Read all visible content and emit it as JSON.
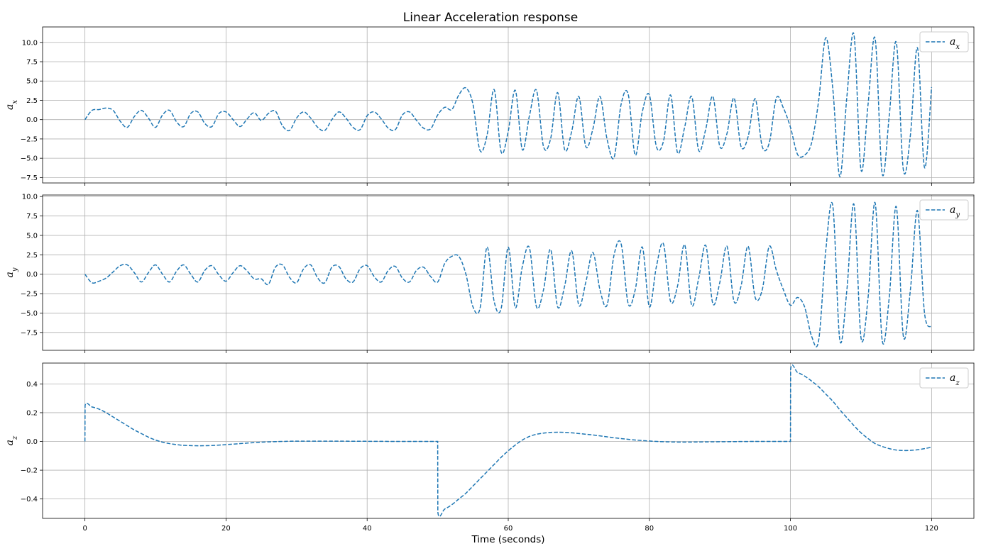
{
  "figure": {
    "title": "Linear Acceleration response",
    "xlabel": "Time (seconds)"
  },
  "chart_data": [
    {
      "type": "line",
      "ylabel": {
        "base": "a",
        "sub": "x"
      },
      "legend": {
        "base": "a",
        "sub": "x",
        "position": "top-right"
      },
      "xlim": [
        -6,
        126
      ],
      "ylim": [
        -8.2,
        12.0
      ],
      "xticks": [
        0,
        20,
        40,
        60,
        80,
        100,
        120
      ],
      "yticks": [
        -7.5,
        -5.0,
        -2.5,
        0.0,
        2.5,
        5.0,
        7.5,
        10.0
      ],
      "ytick_labels": [
        "−7.5",
        "−5.0",
        "−2.5",
        "0.0",
        "2.5",
        "5.0",
        "7.5",
        "10.0"
      ],
      "grid": true,
      "series": [
        {
          "name": "a_x",
          "style": "dashed",
          "x": [
            0,
            1,
            2,
            3,
            4,
            5,
            6,
            7,
            8,
            9,
            10,
            11,
            12,
            13,
            14,
            15,
            16,
            17,
            18,
            19,
            20,
            21,
            22,
            23,
            24,
            25,
            26,
            27,
            28,
            29,
            30,
            31,
            32,
            33,
            34,
            35,
            36,
            37,
            38,
            39,
            40,
            41,
            42,
            43,
            44,
            45,
            46,
            47,
            48,
            49,
            50,
            51,
            52,
            53,
            54,
            55,
            56,
            57,
            58,
            59,
            60,
            61,
            62,
            63,
            64,
            65,
            66,
            67,
            68,
            69,
            70,
            71,
            72,
            73,
            74,
            75,
            76,
            77,
            78,
            79,
            80,
            81,
            82,
            83,
            84,
            85,
            86,
            87,
            88,
            89,
            90,
            91,
            92,
            93,
            94,
            95,
            96,
            97,
            98,
            99,
            100,
            101,
            102,
            103,
            104,
            105,
            106,
            107,
            108,
            109,
            110,
            111,
            112,
            113,
            114,
            115,
            116,
            117,
            118,
            119,
            120
          ],
          "y": [
            0.0,
            1.2,
            1.3,
            1.5,
            1.2,
            -0.2,
            -1.0,
            0.4,
            1.2,
            0.2,
            -1.0,
            0.6,
            1.2,
            -0.3,
            -0.9,
            0.8,
            1.0,
            -0.5,
            -0.9,
            0.8,
            1.0,
            0.0,
            -0.9,
            0.1,
            0.9,
            -0.1,
            0.8,
            1.1,
            -0.8,
            -1.4,
            0.2,
            1.0,
            0.2,
            -1.0,
            -1.4,
            0.0,
            1.0,
            0.2,
            -1.0,
            -1.3,
            0.5,
            1.0,
            0.1,
            -1.1,
            -1.3,
            0.6,
            1.0,
            -0.1,
            -1.1,
            -1.2,
            0.6,
            1.6,
            1.3,
            3.2,
            4.1,
            2.0,
            -4.0,
            -2.0,
            3.9,
            -4.2,
            -1.5,
            3.8,
            -3.9,
            0.5,
            3.8,
            -3.5,
            -2.5,
            3.5,
            -3.9,
            -1.5,
            3.0,
            -3.5,
            -1.2,
            3.0,
            -2.5,
            -4.9,
            2.0,
            3.3,
            -4.6,
            1.0,
            3.2,
            -3.5,
            -2.8,
            3.2,
            -4.3,
            -1.0,
            3.0,
            -4.0,
            -1.2,
            3.0,
            -3.5,
            -1.8,
            2.8,
            -3.5,
            -2.2,
            2.7,
            -3.5,
            -3.0,
            2.8,
            1.5,
            -1.0,
            -4.5,
            -4.6,
            -3.0,
            2.5,
            10.6,
            4.0,
            -7.4,
            3.0,
            11.0,
            -6.5,
            2.0,
            10.5,
            -7.0,
            0.5,
            10.0,
            -6.5,
            -2.0,
            9.3,
            -6.2,
            4.2
          ]
        }
      ]
    },
    {
      "type": "line",
      "ylabel": {
        "base": "a",
        "sub": "y"
      },
      "legend": {
        "base": "a",
        "sub": "y",
        "position": "top-right"
      },
      "xlim": [
        -6,
        126
      ],
      "ylim": [
        -9.8,
        10.2
      ],
      "xticks": [
        0,
        20,
        40,
        60,
        80,
        100,
        120
      ],
      "yticks": [
        -7.5,
        -5.0,
        -2.5,
        0.0,
        2.5,
        5.0,
        7.5,
        10.0
      ],
      "ytick_labels": [
        "−7.5",
        "−5.0",
        "−2.5",
        "0.0",
        "2.5",
        "5.0",
        "7.5",
        "10.0"
      ],
      "grid": true,
      "series": [
        {
          "name": "a_y",
          "style": "dashed",
          "x": [
            0,
            1,
            2,
            3,
            4,
            5,
            6,
            7,
            8,
            9,
            10,
            11,
            12,
            13,
            14,
            15,
            16,
            17,
            18,
            19,
            20,
            21,
            22,
            23,
            24,
            25,
            26,
            27,
            28,
            29,
            30,
            31,
            32,
            33,
            34,
            35,
            36,
            37,
            38,
            39,
            40,
            41,
            42,
            43,
            44,
            45,
            46,
            47,
            48,
            49,
            50,
            51,
            52,
            53,
            54,
            55,
            56,
            57,
            58,
            59,
            60,
            61,
            62,
            63,
            64,
            65,
            66,
            67,
            68,
            69,
            70,
            71,
            72,
            73,
            74,
            75,
            76,
            77,
            78,
            79,
            80,
            81,
            82,
            83,
            84,
            85,
            86,
            87,
            88,
            89,
            90,
            91,
            92,
            93,
            94,
            95,
            96,
            97,
            98,
            99,
            100,
            101,
            102,
            103,
            104,
            105,
            106,
            107,
            108,
            109,
            110,
            111,
            112,
            113,
            114,
            115,
            116,
            117,
            118,
            119,
            120
          ],
          "y": [
            0.0,
            -1.1,
            -0.9,
            -0.5,
            0.3,
            1.1,
            1.2,
            0.2,
            -1.0,
            0.2,
            1.2,
            0.0,
            -1.0,
            0.4,
            1.2,
            0.0,
            -1.0,
            0.5,
            1.1,
            -0.1,
            -0.9,
            0.2,
            1.1,
            0.4,
            -0.6,
            -0.6,
            -1.3,
            0.9,
            1.2,
            -0.4,
            -1.1,
            0.7,
            1.2,
            -0.5,
            -1.1,
            0.9,
            1.0,
            -0.6,
            -1.0,
            0.7,
            1.1,
            -0.3,
            -1.0,
            0.5,
            1.0,
            -0.5,
            -1.0,
            0.5,
            0.9,
            -0.3,
            -1.0,
            1.4,
            2.3,
            2.3,
            0.0,
            -4.2,
            -4.4,
            3.5,
            -3.5,
            -4.4,
            3.5,
            -4.3,
            1.0,
            3.4,
            -4.2,
            -2.0,
            3.2,
            -4.2,
            -1.5,
            3.0,
            -4.0,
            -1.0,
            2.8,
            -2.0,
            -4.0,
            2.5,
            3.9,
            -3.8,
            -2.0,
            3.5,
            -4.2,
            1.0,
            3.9,
            -3.5,
            -1.5,
            3.8,
            -4.0,
            -0.5,
            3.7,
            -3.8,
            -1.0,
            3.6,
            -3.5,
            -1.5,
            3.6,
            -3.0,
            -2.0,
            3.6,
            0.5,
            -2.0,
            -4.0,
            -3.0,
            -4.2,
            -8.0,
            -8.5,
            3.0,
            8.8,
            -8.5,
            -2.0,
            9.0,
            -8.2,
            -3.0,
            9.2,
            -8.5,
            -3.0,
            8.7,
            -8.0,
            -2.0,
            8.2,
            -5.0,
            -6.8
          ]
        }
      ]
    },
    {
      "type": "line",
      "ylabel": {
        "base": "a",
        "sub": "z"
      },
      "legend": {
        "base": "a",
        "sub": "z",
        "position": "top-right"
      },
      "xlim": [
        -6,
        126
      ],
      "ylim": [
        -0.535,
        0.545
      ],
      "xticks": [
        0,
        20,
        40,
        60,
        80,
        100,
        120
      ],
      "xtick_labels": [
        "0",
        "20",
        "40",
        "60",
        "80",
        "100",
        "120"
      ],
      "yticks": [
        -0.4,
        -0.2,
        0.0,
        0.2,
        0.4
      ],
      "ytick_labels": [
        "−0.4",
        "−0.2",
        "0.0",
        "0.2",
        "0.4"
      ],
      "grid": true,
      "series": [
        {
          "name": "a_z",
          "style": "dashed",
          "x": [
            0,
            0.02,
            1,
            2,
            3,
            4,
            5,
            6,
            7,
            8,
            9,
            10,
            11,
            12,
            13,
            14,
            16,
            18,
            20,
            22,
            24,
            26,
            28,
            30,
            35,
            40,
            45,
            49.98,
            50,
            50.02,
            51,
            52,
            53,
            54,
            55,
            56,
            57,
            58,
            59,
            60,
            61,
            62,
            63,
            64,
            65,
            66,
            67,
            68,
            69,
            70,
            72,
            74,
            76,
            78,
            80,
            82,
            84,
            86,
            88,
            90,
            95,
            99.98,
            100,
            100.02,
            101,
            102,
            103,
            104,
            105,
            106,
            107,
            108,
            109,
            110,
            111,
            112,
            113,
            114,
            115,
            116,
            117,
            118,
            119,
            120
          ],
          "y": [
            0.0,
            0.25,
            0.24,
            0.225,
            0.2,
            0.17,
            0.14,
            0.11,
            0.08,
            0.055,
            0.03,
            0.01,
            -0.005,
            -0.015,
            -0.022,
            -0.027,
            -0.03,
            -0.028,
            -0.022,
            -0.015,
            -0.008,
            -0.003,
            0.0,
            0.002,
            0.002,
            0.001,
            0.0,
            0.0,
            0.0,
            -0.49,
            -0.47,
            -0.44,
            -0.4,
            -0.36,
            -0.31,
            -0.26,
            -0.21,
            -0.16,
            -0.11,
            -0.065,
            -0.025,
            0.01,
            0.035,
            0.05,
            0.058,
            0.063,
            0.064,
            0.063,
            0.06,
            0.055,
            0.045,
            0.032,
            0.02,
            0.01,
            0.003,
            -0.002,
            -0.004,
            -0.004,
            -0.003,
            -0.002,
            0.0,
            0.0,
            0.0,
            0.5,
            0.48,
            0.455,
            0.42,
            0.38,
            0.33,
            0.28,
            0.22,
            0.165,
            0.11,
            0.06,
            0.02,
            -0.015,
            -0.035,
            -0.05,
            -0.06,
            -0.063,
            -0.062,
            -0.058,
            -0.05,
            -0.04
          ]
        }
      ]
    }
  ]
}
